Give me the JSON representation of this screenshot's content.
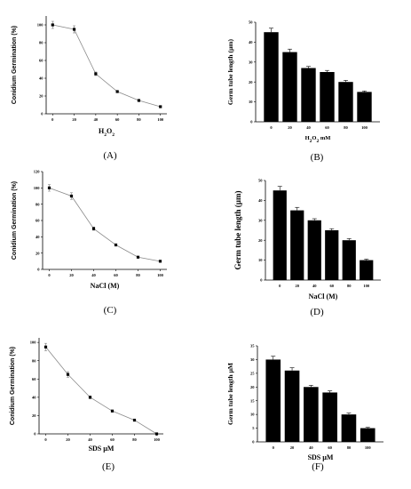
{
  "chart_data": [
    {
      "type": "line",
      "panel_label": "(A)",
      "ylabel": "Conidium Germination (%)",
      "xlabel": "H2O2",
      "x": [
        0,
        20,
        40,
        60,
        80,
        100
      ],
      "values": [
        100,
        95,
        45,
        25,
        15,
        8
      ],
      "errors": [
        4,
        4,
        2,
        1,
        1,
        1
      ],
      "xlim": [
        -6,
        106
      ],
      "ylim": [
        0,
        110
      ],
      "yticks": [
        0,
        20,
        40,
        60,
        80,
        100
      ],
      "xticks": [
        0,
        20,
        40,
        60,
        80,
        100
      ],
      "grid": false
    },
    {
      "type": "bar",
      "panel_label": "(B)",
      "ylabel": "Germ tube length (µm)",
      "xlabel": "H2O2 mM",
      "categories": [
        "0",
        "20",
        "40",
        "60",
        "80",
        "100"
      ],
      "values": [
        45,
        35,
        27,
        25,
        20,
        15
      ],
      "errors": [
        2,
        1.5,
        0.8,
        0.8,
        0.8,
        0.5
      ],
      "ylim": [
        0,
        50
      ],
      "yticks": [
        0,
        10,
        20,
        30,
        40,
        50
      ],
      "grid": false
    },
    {
      "type": "line",
      "panel_label": "(C)",
      "ylabel": "Conidium Germination (%)",
      "xlabel": "NaCl (M)",
      "x": [
        0,
        20,
        40,
        60,
        80,
        100
      ],
      "values": [
        100,
        90,
        50,
        30,
        15,
        10
      ],
      "errors": [
        4,
        4,
        2,
        1,
        1,
        1
      ],
      "xlim": [
        -6,
        106
      ],
      "ylim": [
        0,
        120
      ],
      "yticks": [
        0,
        20,
        40,
        60,
        80,
        100,
        120
      ],
      "xticks": [
        0,
        20,
        40,
        60,
        80,
        100
      ],
      "grid": false
    },
    {
      "type": "bar",
      "panel_label": "(D)",
      "ylabel": "Germ tube length (µm)",
      "xlabel": "NaCl (M)",
      "categories": [
        "0",
        "20",
        "40",
        "60",
        "80",
        "100"
      ],
      "values": [
        45,
        35,
        30,
        25,
        20,
        10
      ],
      "errors": [
        2,
        1.5,
        0.8,
        0.8,
        0.8,
        0.5
      ],
      "ylim": [
        0,
        50
      ],
      "yticks": [
        0,
        10,
        20,
        30,
        40,
        50
      ],
      "grid": false
    },
    {
      "type": "line",
      "panel_label": "(E)",
      "ylabel": "Conidium Germination (%)",
      "xlabel": "SDS µM",
      "x": [
        0,
        20,
        40,
        60,
        80,
        100
      ],
      "values": [
        95,
        65,
        40,
        25,
        15,
        0
      ],
      "errors": [
        4,
        3,
        1.5,
        1,
        1,
        1
      ],
      "xlim": [
        -6,
        106
      ],
      "ylim": [
        0,
        105
      ],
      "yticks": [
        0,
        20,
        40,
        60,
        80,
        100
      ],
      "xticks": [
        0,
        20,
        40,
        60,
        80,
        100
      ],
      "grid": false
    },
    {
      "type": "bar",
      "panel_label": "(F)",
      "ylabel": "Germ tube length µM",
      "xlabel": "SDS µM",
      "categories": [
        "0",
        "20",
        "40",
        "60",
        "80",
        "100"
      ],
      "values": [
        30,
        26,
        20,
        18,
        10,
        5
      ],
      "errors": [
        1.2,
        1,
        0.6,
        0.6,
        0.5,
        0.3
      ],
      "ylim": [
        0,
        35
      ],
      "yticks": [
        0,
        5,
        10,
        15,
        20,
        25,
        30,
        35
      ],
      "grid": false
    }
  ]
}
